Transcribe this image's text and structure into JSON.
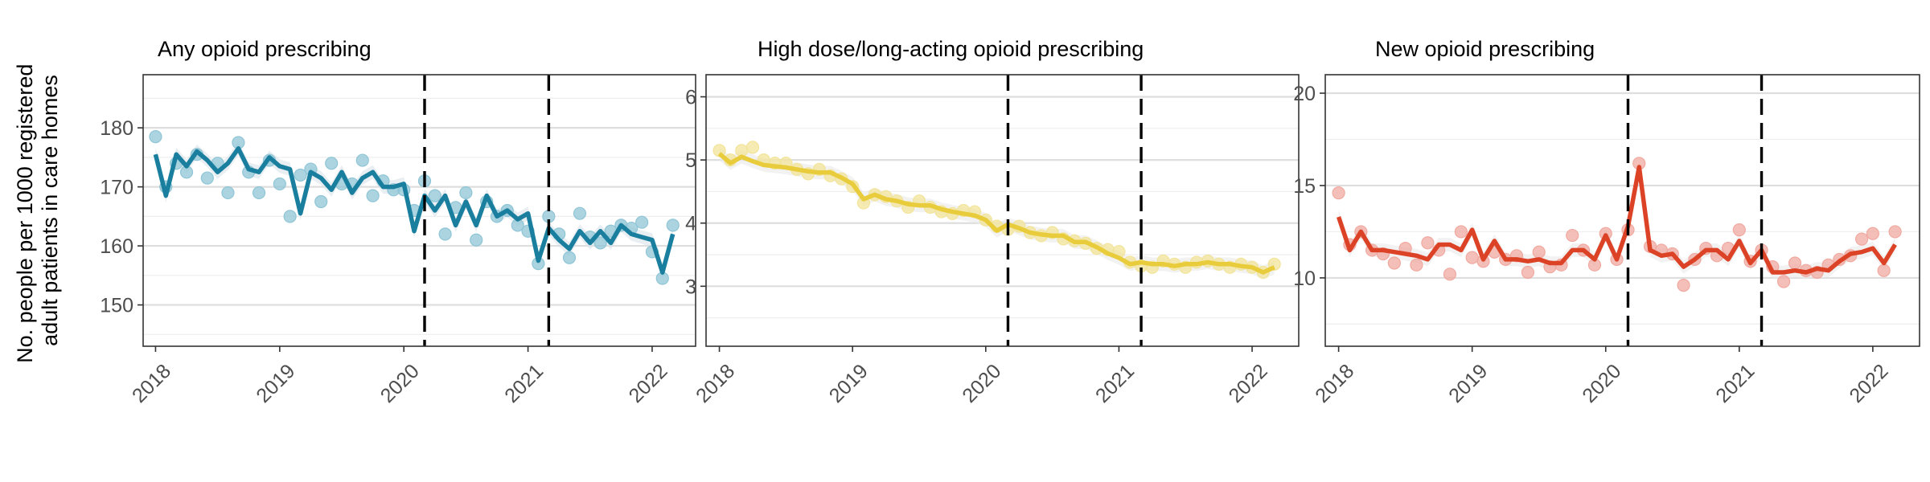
{
  "y_axis_title": [
    "No. people per 1000 registered",
    "adult patients in care homes"
  ],
  "chart_data": [
    {
      "type": "line",
      "title": "Any opioid prescribing",
      "xlabel": "",
      "ylabel": "No. people per 1000 registered adult patients in care homes",
      "xlim": [
        2017.9,
        2022.35
      ],
      "ylim": [
        143,
        189
      ],
      "x_ticks": [
        2018,
        2019,
        2020,
        2021,
        2022
      ],
      "x_tick_labels": [
        "2018",
        "2019",
        "2020",
        "2021",
        "2022"
      ],
      "y_ticks": [
        150,
        160,
        170,
        180
      ],
      "y_tick_labels": [
        "150",
        "160",
        "170",
        "180"
      ],
      "y_minor_ticks": [
        145,
        155,
        165,
        175,
        185
      ],
      "vlines": [
        2020.167,
        2021.167
      ],
      "grid": true,
      "color": "#1a7f9e",
      "point_color": "#8fc5d6",
      "ribbon_color": "#d9e3e8",
      "series": [
        {
          "kind": "fitted",
          "x": [
            2018.0,
            2018.083,
            2018.167,
            2018.25,
            2018.333,
            2018.417,
            2018.5,
            2018.583,
            2018.667,
            2018.75,
            2018.833,
            2018.917,
            2019.0,
            2019.083,
            2019.167,
            2019.25,
            2019.333,
            2019.417,
            2019.5,
            2019.583,
            2019.667,
            2019.75,
            2019.833,
            2019.917,
            2020.0,
            2020.083,
            2020.167,
            2020.25,
            2020.333,
            2020.417,
            2020.5,
            2020.583,
            2020.667,
            2020.75,
            2020.833,
            2020.917,
            2021.0,
            2021.083,
            2021.167,
            2021.25,
            2021.333,
            2021.417,
            2021.5,
            2021.583,
            2021.667,
            2021.75,
            2021.833,
            2021.917,
            2022.0,
            2022.083,
            2022.167
          ],
          "y": [
            175.5,
            168.5,
            175.5,
            173.5,
            176.0,
            174.5,
            172.5,
            174.0,
            176.5,
            173.0,
            172.5,
            175.0,
            173.5,
            173.0,
            165.5,
            172.5,
            171.5,
            169.5,
            172.5,
            169.0,
            171.5,
            172.5,
            170.0,
            170.0,
            170.5,
            162.5,
            168.5,
            166.0,
            168.5,
            163.5,
            167.5,
            163.5,
            168.5,
            165.0,
            166.0,
            164.5,
            165.5,
            157.5,
            163.0,
            161.0,
            159.5,
            162.5,
            160.5,
            162.5,
            160.5,
            163.5,
            162.0,
            161.5,
            161.0,
            155.5,
            162.0
          ]
        },
        {
          "kind": "observed",
          "x": [
            2018.0,
            2018.083,
            2018.167,
            2018.25,
            2018.333,
            2018.417,
            2018.5,
            2018.583,
            2018.667,
            2018.75,
            2018.833,
            2018.917,
            2019.0,
            2019.083,
            2019.167,
            2019.25,
            2019.333,
            2019.417,
            2019.5,
            2019.583,
            2019.667,
            2019.75,
            2019.833,
            2019.917,
            2020.0,
            2020.083,
            2020.167,
            2020.25,
            2020.333,
            2020.417,
            2020.5,
            2020.583,
            2020.667,
            2020.75,
            2020.833,
            2020.917,
            2021.0,
            2021.083,
            2021.167,
            2021.25,
            2021.333,
            2021.417,
            2021.5,
            2021.583,
            2021.667,
            2021.75,
            2021.833,
            2021.917,
            2022.0,
            2022.083,
            2022.167
          ],
          "y": [
            178.5,
            170.0,
            174.0,
            172.5,
            175.5,
            171.5,
            174.0,
            169.0,
            177.5,
            172.5,
            169.0,
            174.5,
            170.5,
            165.0,
            172.0,
            173.0,
            167.5,
            174.0,
            170.5,
            170.5,
            174.5,
            168.5,
            171.0,
            169.5,
            169.5,
            166.0,
            171.0,
            168.5,
            162.0,
            166.5,
            169.0,
            161.0,
            167.5,
            165.0,
            166.0,
            163.5,
            162.5,
            157.0,
            165.0,
            162.0,
            158.0,
            165.5,
            161.5,
            160.5,
            162.5,
            163.5,
            163.0,
            164.0,
            159.0,
            154.5,
            163.5
          ]
        }
      ]
    },
    {
      "type": "line",
      "title": "High dose/long-acting opioid prescribing",
      "xlabel": "",
      "ylabel": "",
      "xlim": [
        2017.9,
        2022.35
      ],
      "ylim": [
        2.05,
        6.35
      ],
      "x_ticks": [
        2018,
        2019,
        2020,
        2021,
        2022
      ],
      "x_tick_labels": [
        "2018",
        "2019",
        "2020",
        "2021",
        "2022"
      ],
      "y_ticks": [
        3,
        4,
        5,
        6
      ],
      "y_tick_labels": [
        "3",
        "4",
        "5",
        "6"
      ],
      "y_minor_ticks": [
        2.5,
        3.5,
        4.5,
        5.5
      ],
      "vlines": [
        2020.167,
        2021.167
      ],
      "grid": true,
      "color": "#e8cc3c",
      "point_color": "#f2e49a",
      "ribbon_color": "#e9e9e9",
      "series": [
        {
          "kind": "fitted",
          "x": [
            2018.0,
            2018.083,
            2018.167,
            2018.25,
            2018.333,
            2018.417,
            2018.5,
            2018.583,
            2018.667,
            2018.75,
            2018.833,
            2018.917,
            2019.0,
            2019.083,
            2019.167,
            2019.25,
            2019.333,
            2019.417,
            2019.5,
            2019.583,
            2019.667,
            2019.75,
            2019.833,
            2019.917,
            2020.0,
            2020.083,
            2020.167,
            2020.25,
            2020.333,
            2020.417,
            2020.5,
            2020.583,
            2020.667,
            2020.75,
            2020.833,
            2020.917,
            2021.0,
            2021.083,
            2021.167,
            2021.25,
            2021.333,
            2021.417,
            2021.5,
            2021.583,
            2021.667,
            2021.75,
            2021.833,
            2021.917,
            2022.0,
            2022.083,
            2022.167
          ],
          "y": [
            5.1,
            4.95,
            5.05,
            4.98,
            4.92,
            4.9,
            4.88,
            4.85,
            4.82,
            4.8,
            4.8,
            4.72,
            4.62,
            4.38,
            4.45,
            4.38,
            4.35,
            4.3,
            4.28,
            4.28,
            4.22,
            4.18,
            4.15,
            4.12,
            4.05,
            3.88,
            3.98,
            3.92,
            3.85,
            3.82,
            3.8,
            3.8,
            3.7,
            3.7,
            3.62,
            3.52,
            3.45,
            3.35,
            3.38,
            3.35,
            3.35,
            3.32,
            3.35,
            3.35,
            3.38,
            3.35,
            3.35,
            3.32,
            3.3,
            3.22,
            3.3
          ]
        },
        {
          "kind": "observed",
          "x": [
            2018.0,
            2018.083,
            2018.167,
            2018.25,
            2018.333,
            2018.417,
            2018.5,
            2018.583,
            2018.667,
            2018.75,
            2018.833,
            2018.917,
            2019.0,
            2019.083,
            2019.167,
            2019.25,
            2019.333,
            2019.417,
            2019.5,
            2019.583,
            2019.667,
            2019.75,
            2019.833,
            2019.917,
            2020.0,
            2020.083,
            2020.167,
            2020.25,
            2020.333,
            2020.417,
            2020.5,
            2020.583,
            2020.667,
            2020.75,
            2020.833,
            2020.917,
            2021.0,
            2021.083,
            2021.167,
            2021.25,
            2021.333,
            2021.417,
            2021.5,
            2021.583,
            2021.667,
            2021.75,
            2021.833,
            2021.917,
            2022.0,
            2022.083,
            2022.167
          ],
          "y": [
            5.15,
            5.0,
            5.15,
            5.2,
            5.0,
            4.95,
            4.95,
            4.85,
            4.78,
            4.85,
            4.75,
            4.7,
            4.58,
            4.32,
            4.45,
            4.42,
            4.35,
            4.25,
            4.35,
            4.25,
            4.18,
            4.15,
            4.2,
            4.18,
            4.05,
            3.95,
            3.9,
            3.95,
            3.85,
            3.8,
            3.85,
            3.75,
            3.72,
            3.68,
            3.6,
            3.58,
            3.55,
            3.38,
            3.32,
            3.3,
            3.4,
            3.35,
            3.3,
            3.38,
            3.4,
            3.35,
            3.3,
            3.35,
            3.3,
            3.22,
            3.35
          ]
        }
      ]
    },
    {
      "type": "line",
      "title": "New opioid prescribing",
      "xlabel": "",
      "ylabel": "",
      "xlim": [
        2017.9,
        2022.35
      ],
      "ylim": [
        6.3,
        21.0
      ],
      "x_ticks": [
        2018,
        2019,
        2020,
        2021,
        2022
      ],
      "x_tick_labels": [
        "2018",
        "2019",
        "2020",
        "2021",
        "2022"
      ],
      "y_ticks": [
        10,
        15,
        20
      ],
      "y_tick_labels": [
        "10",
        "15",
        "20"
      ],
      "y_minor_ticks": [
        7.5,
        12.5,
        17.5
      ],
      "vlines": [
        2020.167,
        2021.167
      ],
      "grid": true,
      "color": "#dc4226",
      "point_color": "#f0a9a0",
      "ribbon_color": "#e9e9e9",
      "series": [
        {
          "kind": "fitted",
          "x": [
            2018.0,
            2018.083,
            2018.167,
            2018.25,
            2018.333,
            2018.417,
            2018.5,
            2018.583,
            2018.667,
            2018.75,
            2018.833,
            2018.917,
            2019.0,
            2019.083,
            2019.167,
            2019.25,
            2019.333,
            2019.417,
            2019.5,
            2019.583,
            2019.667,
            2019.75,
            2019.833,
            2019.917,
            2020.0,
            2020.083,
            2020.167,
            2020.25,
            2020.333,
            2020.417,
            2020.5,
            2020.583,
            2020.667,
            2020.75,
            2020.833,
            2020.917,
            2021.0,
            2021.083,
            2021.167,
            2021.25,
            2021.333,
            2021.417,
            2021.5,
            2021.583,
            2021.667,
            2021.75,
            2021.833,
            2021.917,
            2022.0,
            2022.083,
            2022.167
          ],
          "y": [
            13.3,
            11.5,
            12.5,
            11.5,
            11.5,
            11.4,
            11.3,
            11.2,
            11.0,
            11.8,
            11.8,
            11.5,
            12.6,
            11.0,
            12.0,
            11.0,
            11.0,
            10.9,
            11.0,
            10.8,
            10.8,
            11.5,
            11.5,
            11.0,
            12.3,
            11.0,
            12.8,
            16.0,
            11.5,
            11.2,
            11.3,
            10.6,
            11.0,
            11.5,
            11.5,
            11.0,
            12.0,
            10.8,
            11.5,
            10.3,
            10.3,
            10.4,
            10.3,
            10.5,
            10.4,
            10.9,
            11.3,
            11.4,
            11.6,
            10.8,
            11.8
          ]
        },
        {
          "kind": "observed",
          "x": [
            2018.0,
            2018.083,
            2018.167,
            2018.25,
            2018.333,
            2018.417,
            2018.5,
            2018.583,
            2018.667,
            2018.75,
            2018.833,
            2018.917,
            2019.0,
            2019.083,
            2019.167,
            2019.25,
            2019.333,
            2019.417,
            2019.5,
            2019.583,
            2019.667,
            2019.75,
            2019.833,
            2019.917,
            2020.0,
            2020.083,
            2020.167,
            2020.25,
            2020.333,
            2020.417,
            2020.5,
            2020.583,
            2020.667,
            2020.75,
            2020.833,
            2020.917,
            2021.0,
            2021.083,
            2021.167,
            2021.25,
            2021.333,
            2021.417,
            2021.5,
            2021.583,
            2021.667,
            2021.75,
            2021.833,
            2021.917,
            2022.0,
            2022.083,
            2022.167
          ],
          "y": [
            14.6,
            11.8,
            12.5,
            11.5,
            11.3,
            10.8,
            11.6,
            10.7,
            11.9,
            11.5,
            10.2,
            12.5,
            11.1,
            10.9,
            11.4,
            11.0,
            11.2,
            10.3,
            11.4,
            10.6,
            10.7,
            12.3,
            11.5,
            10.7,
            12.4,
            11.0,
            12.6,
            16.2,
            11.7,
            11.5,
            11.3,
            9.6,
            11.0,
            11.6,
            11.2,
            11.6,
            12.6,
            10.9,
            11.5,
            10.6,
            9.8,
            10.8,
            10.4,
            10.3,
            10.7,
            11.0,
            11.2,
            12.1,
            12.4,
            10.4,
            12.5
          ]
        }
      ]
    }
  ]
}
